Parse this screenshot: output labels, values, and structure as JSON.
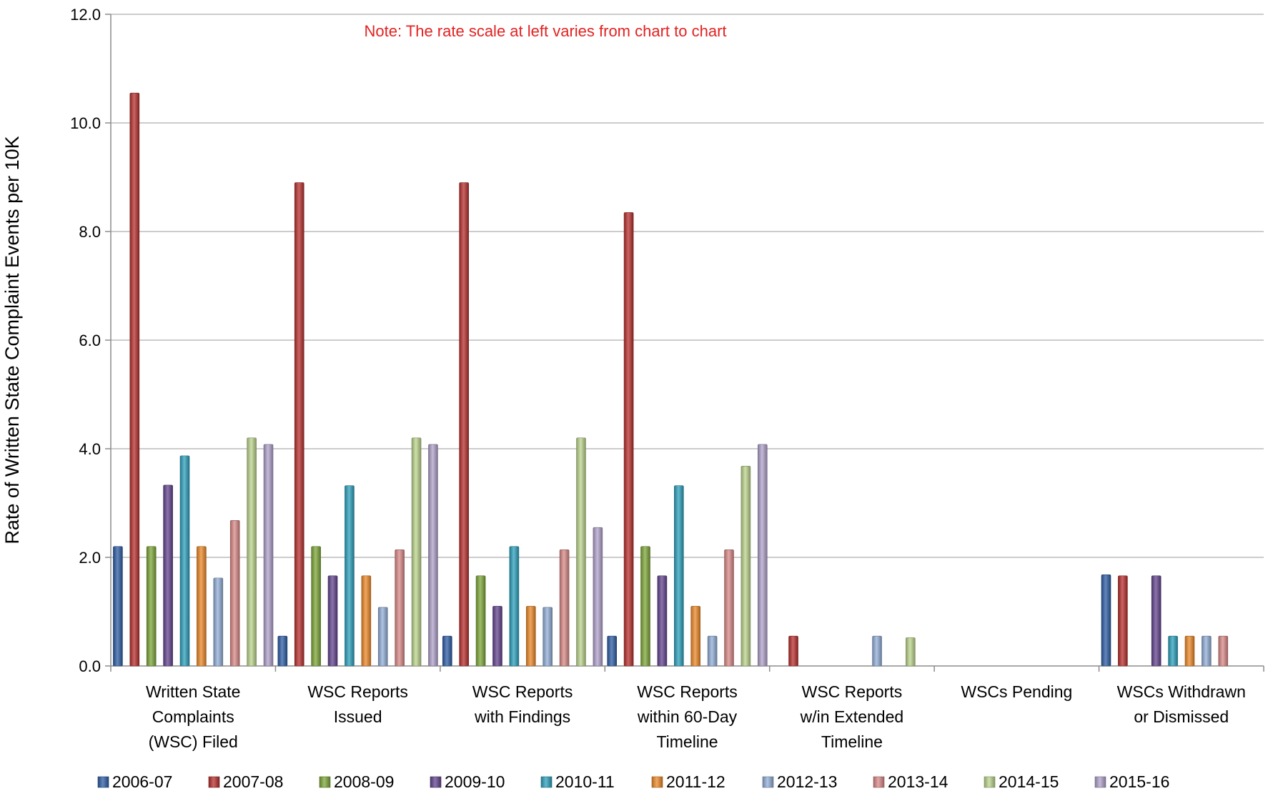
{
  "chart_data": {
    "type": "bar",
    "title": "",
    "note": "Note:  The rate scale at left varies from chart to chart",
    "xlabel": "",
    "ylabel": "Rate of Written State Complaint Events per 10K",
    "ylim": [
      0,
      12
    ],
    "yticks": [
      "0.0",
      "2.0",
      "4.0",
      "6.0",
      "8.0",
      "10.0",
      "12.0"
    ],
    "grid": true,
    "legend_position": "bottom",
    "categories": [
      [
        "Written State",
        "Complaints",
        "(WSC) Filed"
      ],
      [
        "WSC Reports",
        "Issued"
      ],
      [
        "WSC Reports",
        "with Findings"
      ],
      [
        "WSC Reports",
        "within 60-Day",
        "Timeline"
      ],
      [
        "WSC Reports",
        "w/in Extended",
        "Timeline"
      ],
      [
        "WSCs Pending"
      ],
      [
        "WSCs Withdrawn",
        "or Dismissed"
      ]
    ],
    "series": [
      {
        "name": "2006-07",
        "color": "#2f5fa7",
        "values": [
          2.2,
          0.55,
          0.55,
          0.55,
          0,
          0,
          1.68
        ]
      },
      {
        "name": "2007-08",
        "color": "#b8312f",
        "values": [
          10.55,
          8.9,
          8.9,
          8.35,
          0.55,
          0,
          1.66
        ]
      },
      {
        "name": "2008-09",
        "color": "#7fa83a",
        "values": [
          2.2,
          2.2,
          1.66,
          2.2,
          0,
          0,
          0
        ]
      },
      {
        "name": "2009-10",
        "color": "#64458f",
        "values": [
          3.33,
          1.66,
          1.1,
          1.66,
          0,
          0,
          1.66
        ]
      },
      {
        "name": "2010-11",
        "color": "#2ea2bd",
        "values": [
          3.87,
          3.32,
          2.2,
          3.32,
          0,
          0,
          0.55
        ]
      },
      {
        "name": "2011-12",
        "color": "#ee8a2a",
        "values": [
          2.2,
          1.66,
          1.1,
          1.1,
          0,
          0,
          0.55
        ]
      },
      {
        "name": "2012-13",
        "color": "#93b0d8",
        "values": [
          1.62,
          1.08,
          1.08,
          0.55,
          0.55,
          0,
          0.55
        ]
      },
      {
        "name": "2013-14",
        "color": "#da8a88",
        "values": [
          2.68,
          2.14,
          2.14,
          2.14,
          0,
          0,
          0.55
        ]
      },
      {
        "name": "2014-15",
        "color": "#bdd58e",
        "values": [
          4.2,
          4.2,
          4.2,
          3.68,
          0.52,
          0,
          0
        ]
      },
      {
        "name": "2015-16",
        "color": "#b2a3cc",
        "values": [
          4.08,
          4.08,
          2.55,
          4.08,
          0,
          0,
          0
        ]
      }
    ]
  }
}
